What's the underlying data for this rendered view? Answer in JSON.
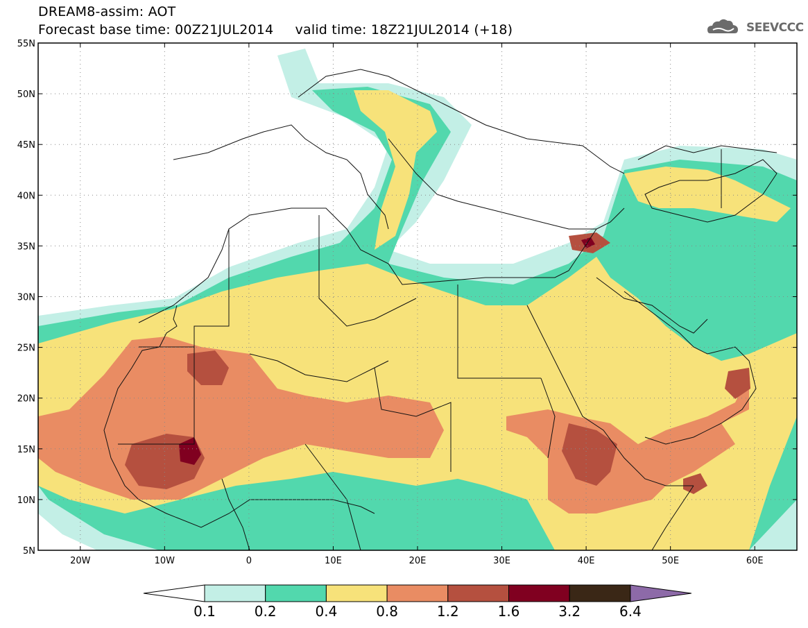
{
  "header": {
    "line1": "DREAM8-assim: AOT",
    "line2": "Forecast base time: 00Z21JUL2014     valid time: 18Z21JUL2014 (+18)",
    "logo_text": "SEEVCCC",
    "logo_icon": "cloud-icon"
  },
  "map": {
    "lon_range": [
      -25,
      65
    ],
    "lat_range": [
      5,
      55
    ],
    "x_ticks": [
      {
        "lon": -20,
        "label": "20W"
      },
      {
        "lon": -10,
        "label": "10W"
      },
      {
        "lon": 0,
        "label": "0"
      },
      {
        "lon": 10,
        "label": "10E"
      },
      {
        "lon": 20,
        "label": "20E"
      },
      {
        "lon": 30,
        "label": "30E"
      },
      {
        "lon": 40,
        "label": "40E"
      },
      {
        "lon": 50,
        "label": "50E"
      },
      {
        "lon": 60,
        "label": "60E"
      }
    ],
    "y_ticks": [
      {
        "lat": 55,
        "label": "55N"
      },
      {
        "lat": 50,
        "label": "50N"
      },
      {
        "lat": 45,
        "label": "45N"
      },
      {
        "lat": 40,
        "label": "40N"
      },
      {
        "lat": 35,
        "label": "35N"
      },
      {
        "lat": 30,
        "label": "30N"
      },
      {
        "lat": 25,
        "label": "25N"
      },
      {
        "lat": 20,
        "label": "20N"
      },
      {
        "lat": 15,
        "label": "15N"
      },
      {
        "lat": 10,
        "label": "10N"
      },
      {
        "lat": 5,
        "label": "5N"
      }
    ],
    "grid": "dotted"
  },
  "colorbar": {
    "levels": [
      "0.1",
      "0.2",
      "0.4",
      "0.8",
      "1.2",
      "1.6",
      "3.2",
      "6.4"
    ],
    "colors": [
      "#ffffff",
      "#c3efe6",
      "#52d8ad",
      "#f7e27a",
      "#e98c63",
      "#b5503f",
      "#800020",
      "#3a2716",
      "#8d6aa8"
    ]
  }
}
